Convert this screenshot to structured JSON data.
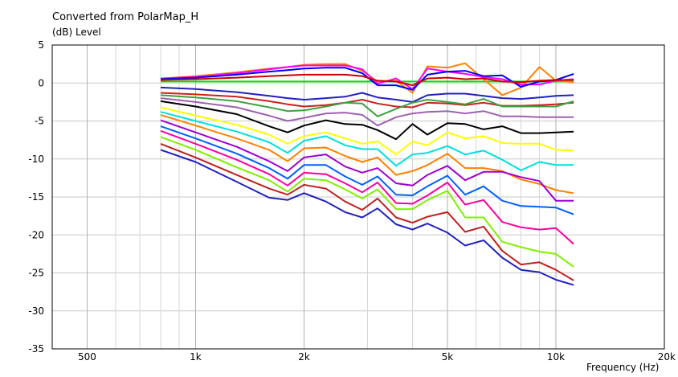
{
  "title": "Converted from PolarMap_H",
  "ylabel": "(dB)  Level",
  "xlabel": "Frequency  (Hz)",
  "chart_data": {
    "type": "line",
    "title": "Converted from PolarMap_H",
    "xlabel": "Frequency  (Hz)",
    "ylabel": "(dB)  Level",
    "xscale": "log",
    "xlim": [
      400,
      20000
    ],
    "ylim": [
      -35,
      5
    ],
    "grid": true,
    "x_ticks": [
      500,
      1000,
      2000,
      5000,
      10000,
      20000
    ],
    "x_tick_labels": [
      "500",
      "1k",
      "2k",
      "5k",
      "10k",
      "20k"
    ],
    "y_ticks": [
      5,
      0,
      -5,
      -10,
      -15,
      -20,
      -25,
      -30,
      -35
    ],
    "y_tick_labels": [
      "5",
      "0",
      "-5",
      "-10",
      "-15",
      "-20",
      "-25",
      "-30",
      "-35"
    ],
    "x": [
      800,
      1000,
      1300,
      1600,
      1800,
      2000,
      2300,
      2600,
      2900,
      3200,
      3600,
      4000,
      4400,
      5000,
      5600,
      6300,
      7100,
      8000,
      9000,
      10000,
      11200
    ],
    "series": [
      {
        "color": "#00e000",
        "values": [
          0.2,
          0.2,
          0.2,
          0.2,
          0.2,
          0.2,
          0.2,
          0.2,
          0.2,
          0.2,
          0.2,
          0.2,
          0.2,
          0.2,
          0.2,
          0.2,
          0.2,
          0.2,
          0.2,
          0.2,
          0.2
        ]
      },
      {
        "color": "#ff8000",
        "values": [
          0.6,
          0.9,
          1.4,
          1.9,
          2.1,
          2.4,
          2.5,
          2.5,
          1.6,
          0.2,
          0.3,
          -1.3,
          2.2,
          2.0,
          2.6,
          0.5,
          -1.6,
          -0.6,
          2.1,
          0.3,
          0.1
        ]
      },
      {
        "color": "#ff00ff",
        "values": [
          0.6,
          0.8,
          1.3,
          1.8,
          2.1,
          2.3,
          2.3,
          2.3,
          1.8,
          -0.1,
          0.6,
          -0.8,
          1.9,
          1.5,
          1.2,
          0.8,
          0.5,
          -0.2,
          -0.2,
          0.3,
          0.5
        ]
      },
      {
        "color": "#0000ff",
        "values": [
          0.5,
          0.7,
          1.1,
          1.5,
          1.7,
          1.9,
          2.0,
          2.0,
          1.3,
          -0.3,
          -0.3,
          -0.9,
          1.1,
          1.5,
          1.6,
          0.9,
          1.0,
          -0.5,
          0.2,
          0.4,
          1.2
        ]
      },
      {
        "color": "#cc0000",
        "values": [
          0.4,
          0.5,
          0.7,
          0.9,
          1.0,
          1.1,
          1.1,
          1.1,
          0.9,
          0.3,
          0.2,
          -0.3,
          0.6,
          0.7,
          0.5,
          0.6,
          0.2,
          0.1,
          0.3,
          0.4,
          0.4
        ]
      },
      {
        "color": "#2020c0",
        "values": [
          -0.6,
          -0.8,
          -1.2,
          -1.7,
          -2.0,
          -2.2,
          -2.0,
          -1.8,
          -1.3,
          -1.9,
          -2.2,
          -2.5,
          -1.6,
          -1.4,
          -1.4,
          -1.7,
          -2.0,
          -2.1,
          -1.9,
          -1.7,
          -1.6
        ]
      },
      {
        "color": "#cc2020",
        "values": [
          -1.3,
          -1.5,
          -1.8,
          -2.4,
          -2.8,
          -3.1,
          -2.9,
          -2.6,
          -2.2,
          -2.7,
          -3.1,
          -3.2,
          -2.6,
          -2.7,
          -2.9,
          -2.6,
          -3.0,
          -3.0,
          -2.9,
          -2.8,
          -2.6
        ]
      },
      {
        "color": "#40a040",
        "values": [
          -1.6,
          -1.9,
          -2.4,
          -3.2,
          -3.7,
          -3.6,
          -3.1,
          -2.6,
          -2.7,
          -4.4,
          -3.4,
          -2.6,
          -2.2,
          -2.5,
          -2.8,
          -2.1,
          -3.1,
          -3.1,
          -3.1,
          -3.1,
          -2.4
        ]
      },
      {
        "color": "#a060b0",
        "values": [
          -2.0,
          -2.5,
          -3.2,
          -4.3,
          -5.0,
          -4.6,
          -4.0,
          -3.9,
          -4.2,
          -5.6,
          -4.5,
          -4.0,
          -3.8,
          -3.7,
          -4.0,
          -3.7,
          -4.4,
          -4.4,
          -4.5,
          -4.5,
          -4.5
        ]
      },
      {
        "color": "#000000",
        "values": [
          -2.4,
          -3.1,
          -4.1,
          -5.7,
          -6.5,
          -5.6,
          -4.9,
          -5.4,
          -5.5,
          -6.2,
          -7.4,
          -5.4,
          -6.8,
          -5.3,
          -5.4,
          -6.1,
          -5.7,
          -6.6,
          -6.6,
          -6.5,
          -6.4
        ]
      },
      {
        "color": "#ffff00",
        "values": [
          -3.2,
          -4.3,
          -5.5,
          -6.8,
          -8.0,
          -7.0,
          -6.5,
          -7.3,
          -8.0,
          -7.7,
          -9.4,
          -7.7,
          -8.2,
          -6.5,
          -7.3,
          -7.0,
          -7.9,
          -8.0,
          -8.0,
          -8.8,
          -8.9
        ]
      },
      {
        "color": "#00e0e0",
        "values": [
          -3.8,
          -5.0,
          -6.4,
          -7.8,
          -9.2,
          -7.6,
          -7.0,
          -8.2,
          -8.7,
          -8.7,
          -10.9,
          -9.4,
          -9.2,
          -8.3,
          -9.4,
          -8.9,
          -10.1,
          -11.5,
          -10.4,
          -10.8,
          -10.8
        ]
      },
      {
        "color": "#ff8000",
        "values": [
          -4.2,
          -5.6,
          -7.3,
          -8.8,
          -10.3,
          -8.6,
          -8.5,
          -9.6,
          -10.4,
          -9.8,
          -12.1,
          -11.6,
          -10.8,
          -9.3,
          -11.2,
          -11.2,
          -11.6,
          -12.7,
          -13.3,
          -14.1,
          -14.5
        ]
      },
      {
        "color": "#a000d0",
        "values": [
          -4.9,
          -6.5,
          -8.4,
          -10.3,
          -11.6,
          -9.8,
          -9.4,
          -11.0,
          -11.8,
          -11.2,
          -13.2,
          -13.5,
          -12.1,
          -10.9,
          -12.8,
          -11.7,
          -11.7,
          -12.4,
          -12.9,
          -15.5,
          -15.5
        ]
      },
      {
        "color": "#0060ff",
        "values": [
          -5.7,
          -7.3,
          -9.3,
          -11.2,
          -12.6,
          -10.8,
          -10.8,
          -12.3,
          -13.4,
          -12.3,
          -14.7,
          -14.8,
          -13.6,
          -12.2,
          -14.7,
          -13.6,
          -15.5,
          -16.2,
          -16.3,
          -16.4,
          -17.3
        ]
      },
      {
        "color": "#ff00a0",
        "values": [
          -6.3,
          -8.0,
          -10.1,
          -12.0,
          -13.5,
          -11.8,
          -12.0,
          -13.2,
          -14.4,
          -13.1,
          -15.8,
          -15.9,
          -14.8,
          -13.1,
          -16.0,
          -15.4,
          -18.3,
          -19.0,
          -19.3,
          -19.1,
          -21.2
        ]
      },
      {
        "color": "#80f000",
        "values": [
          -7.1,
          -8.8,
          -11.1,
          -12.8,
          -14.3,
          -12.6,
          -12.8,
          -14.0,
          -15.2,
          -14.0,
          -16.6,
          -16.6,
          -15.4,
          -14.2,
          -17.7,
          -17.7,
          -20.9,
          -21.6,
          -22.2,
          -22.5,
          -24.2
        ]
      },
      {
        "color": "#c02020",
        "values": [
          -8.0,
          -9.8,
          -12.1,
          -13.9,
          -14.7,
          -13.4,
          -13.9,
          -15.6,
          -16.7,
          -15.2,
          -17.7,
          -18.4,
          -17.6,
          -17.0,
          -19.6,
          -18.9,
          -22.1,
          -23.9,
          -23.6,
          -24.6,
          -26.0
        ]
      },
      {
        "color": "#2020c0",
        "values": [
          -8.8,
          -10.4,
          -13.0,
          -15.1,
          -15.4,
          -14.5,
          -15.6,
          -17.0,
          -17.7,
          -16.5,
          -18.6,
          -19.3,
          -18.5,
          -19.7,
          -21.4,
          -20.7,
          -23.0,
          -24.6,
          -24.9,
          -25.9,
          -26.6
        ]
      }
    ]
  }
}
